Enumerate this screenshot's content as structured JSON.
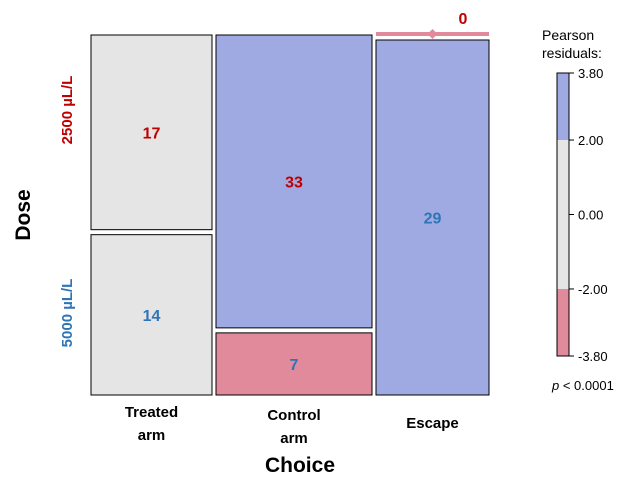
{
  "chart_data": {
    "type": "mosaic",
    "title": "",
    "xlabel": "Choice",
    "ylabel": "Dose",
    "columns": [
      {
        "label_lines": [
          "Treated",
          "arm"
        ]
      },
      {
        "label_lines": [
          "Control",
          "arm"
        ]
      },
      {
        "label_lines": [
          "Escape"
        ]
      }
    ],
    "rows": [
      {
        "label": "2500 µL/L",
        "color": "#c00000"
      },
      {
        "label": "5000 µL/L",
        "color": "#2e75b6"
      }
    ],
    "counts": [
      [
        17,
        14
      ],
      [
        33,
        7
      ],
      [
        0,
        29
      ]
    ],
    "cell_labels": [
      [
        "17",
        "14"
      ],
      [
        "33",
        "7"
      ],
      [
        "0",
        "29"
      ]
    ],
    "residual_class": [
      [
        "neutral",
        "neutral"
      ],
      [
        "high",
        "low"
      ],
      [
        "low",
        "high"
      ]
    ],
    "label_color_class": [
      [
        "red",
        "blue"
      ],
      [
        "red",
        "blue"
      ],
      [
        "red",
        "blue"
      ]
    ],
    "colors": {
      "high": "#9faae3",
      "neutral": "#e5e5e5",
      "low": "#e18a9b",
      "red_text": "#c00000",
      "blue_text": "#2e75b6",
      "border": "#000000"
    },
    "legend": {
      "title_lines": [
        "Pearson",
        "residuals:"
      ],
      "ticks": [
        "3.80",
        "2.00",
        "0.00",
        "-2.00",
        "-3.80"
      ],
      "tick_values": [
        3.8,
        2.0,
        0.0,
        -2.0,
        -3.8
      ],
      "range": [
        -3.8,
        3.8
      ],
      "bands": [
        {
          "from": 2.0,
          "to": 3.8,
          "class": "high"
        },
        {
          "from": -2.0,
          "to": 2.0,
          "class": "neutral"
        },
        {
          "from": -3.8,
          "to": -2.0,
          "class": "low"
        }
      ],
      "pvalue_italic": "p",
      "pvalue_rest": " < 0.0001"
    }
  }
}
